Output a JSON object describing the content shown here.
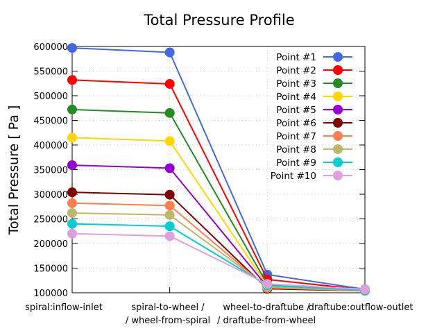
{
  "chart_data": {
    "type": "line",
    "title": "Total Pressure Profile",
    "xlabel": "",
    "ylabel": "Total Pressure [ Pa ]",
    "ylim": [
      100000,
      600000
    ],
    "yticks": [
      100000,
      150000,
      200000,
      250000,
      300000,
      350000,
      400000,
      450000,
      500000,
      550000,
      600000
    ],
    "ytick_labels": [
      "100000",
      "150000",
      "200000",
      "250000",
      "300000",
      "350000",
      "400000",
      "450000",
      "500000",
      "550000",
      "600000"
    ],
    "grid": true,
    "legend_position": "top-right",
    "categories": [
      [
        "spiral:inflow-inlet"
      ],
      [
        "spiral-to-wheel /",
        "/ wheel-from-spiral"
      ],
      [
        "wheel-to-draftube /",
        "/ draftube-from-wheel"
      ],
      [
        "draftube:outflow-outlet"
      ]
    ],
    "series": [
      {
        "name": "Point #1",
        "color": "#4169e1",
        "values": [
          597000,
          588000,
          137000,
          107000
        ]
      },
      {
        "name": "Point #2",
        "color": "#ff0000",
        "values": [
          532000,
          524000,
          127000,
          106000
        ]
      },
      {
        "name": "Point #3",
        "color": "#228b22",
        "values": [
          472000,
          465000,
          117000,
          106000
        ]
      },
      {
        "name": "Point #4",
        "color": "#ffd700",
        "values": [
          415000,
          408000,
          114000,
          105000
        ]
      },
      {
        "name": "Point #5",
        "color": "#9400d3",
        "values": [
          359000,
          353000,
          112000,
          105000
        ]
      },
      {
        "name": "Point #6",
        "color": "#800000",
        "values": [
          304000,
          299000,
          108000,
          104000
        ]
      },
      {
        "name": "Point #7",
        "color": "#ff7f50",
        "values": [
          282000,
          277000,
          110000,
          104000
        ]
      },
      {
        "name": "Point #8",
        "color": "#bdb76b",
        "values": [
          262000,
          258000,
          112000,
          105000
        ]
      },
      {
        "name": "Point #9",
        "color": "#00ced1",
        "values": [
          240000,
          235000,
          115000,
          105000
        ]
      },
      {
        "name": "Point #10",
        "color": "#dda0dd",
        "values": [
          220000,
          215000,
          118000,
          107000
        ]
      }
    ]
  }
}
